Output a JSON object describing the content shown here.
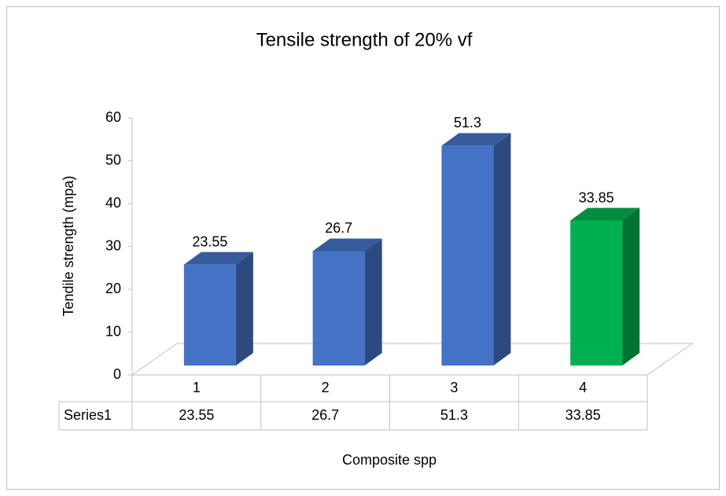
{
  "chart_data": {
    "type": "bar3d",
    "title": "Tensile strength of 20% vf",
    "y_label": "Tendile strength (mpa)",
    "x_label": "Composite spp",
    "categories": [
      "1",
      "2",
      "3",
      "4"
    ],
    "series": [
      {
        "name": "Series1",
        "values": [
          23.55,
          26.7,
          51.3,
          33.85
        ],
        "colors": [
          "#4472c4",
          "#4472c4",
          "#4472c4",
          "#00b050"
        ]
      }
    ],
    "ylim": [
      0,
      60
    ],
    "yticks": [
      0,
      10,
      20,
      30,
      40,
      50,
      60
    ],
    "data_table": true
  }
}
